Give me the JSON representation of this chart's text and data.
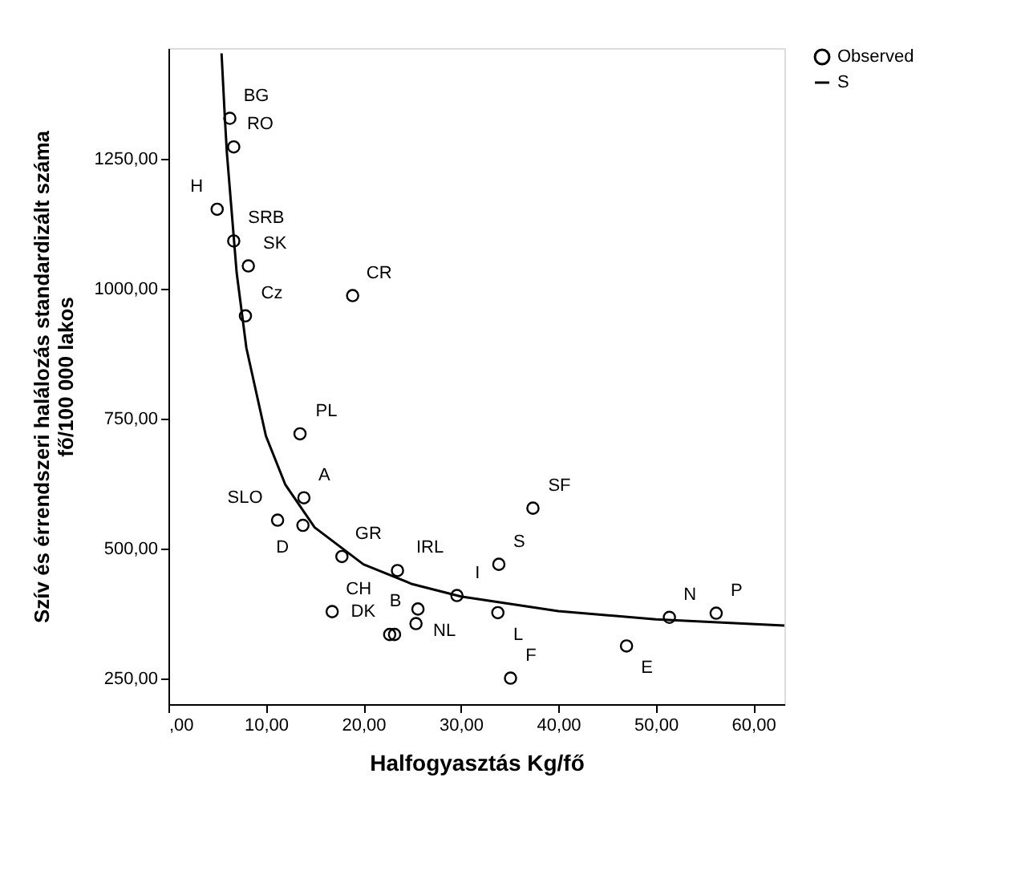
{
  "chart_data": {
    "type": "scatter",
    "xlabel": "Halfogyasztás Kg/fő",
    "ylabel": "Szív és érrendszeri halálozás standardizált száma\nfő/100 000 lakos",
    "xlim": [
      0,
      63.2
    ],
    "ylim": [
      201,
      1463
    ],
    "xticks": [
      {
        "value": 0,
        "label": ",00"
      },
      {
        "value": 10,
        "label": "10,00"
      },
      {
        "value": 20,
        "label": "20,00"
      },
      {
        "value": 30,
        "label": "30,00"
      },
      {
        "value": 40,
        "label": "40,00"
      },
      {
        "value": 50,
        "label": "50,00"
      },
      {
        "value": 60,
        "label": "60,00"
      }
    ],
    "yticks": [
      {
        "value": 250,
        "label": "250,00"
      },
      {
        "value": 500,
        "label": "500,00"
      },
      {
        "value": 750,
        "label": "750,00"
      },
      {
        "value": 1000,
        "label": "1000,00"
      },
      {
        "value": 1250,
        "label": "1250,00"
      }
    ],
    "legend": "top right",
    "grid": false,
    "series": [
      {
        "name": "Observed",
        "marker": "circle",
        "color": "#000000",
        "x": [
          6.3,
          6.7,
          5.0,
          6.7,
          8.2,
          7.9,
          18.9,
          13.5,
          13.9,
          11.2,
          13.8,
          17.8,
          16.8,
          23.5,
          25.6,
          25.4,
          22.7,
          23.2,
          29.6,
          33.9,
          33.8,
          35.1,
          37.4,
          47.0,
          51.4,
          56.2
        ],
        "values": [
          1328,
          1273,
          1153,
          1092,
          1044,
          948,
          987,
          721,
          598,
          555,
          545,
          485,
          379,
          458,
          384,
          356,
          335,
          335,
          410,
          470,
          377,
          251,
          578,
          313,
          368,
          376
        ]
      },
      {
        "name": "S",
        "type": "line",
        "marker": "none",
        "line_style": "solid",
        "color": "#000000",
        "x": [
          5.45,
          5.8,
          6,
          7,
          8,
          10,
          12,
          15,
          20,
          25,
          30,
          40,
          50,
          63.2
        ],
        "values": [
          1453,
          1325,
          1261,
          1031,
          886,
          717,
          623,
          541,
          470,
          432,
          408,
          380,
          364,
          352
        ]
      }
    ],
    "annotations": [
      {
        "text": "BG",
        "x": 6.3,
        "y": 1328
      },
      {
        "text": "RO",
        "x": 6.7,
        "y": 1273
      },
      {
        "text": "H",
        "x": 5.0,
        "y": 1153
      },
      {
        "text": "SRB",
        "x": 6.7,
        "y": 1092
      },
      {
        "text": "SK",
        "x": 8.2,
        "y": 1044
      },
      {
        "text": "Cz",
        "x": 7.9,
        "y": 948
      },
      {
        "text": "CR",
        "x": 18.9,
        "y": 987
      },
      {
        "text": "PL",
        "x": 13.5,
        "y": 721
      },
      {
        "text": "A",
        "x": 13.9,
        "y": 598
      },
      {
        "text": "SLO",
        "x": 11.2,
        "y": 555
      },
      {
        "text": "D",
        "x": 13.8,
        "y": 545
      },
      {
        "text": "GR",
        "x": 17.8,
        "y": 485
      },
      {
        "text": "CH",
        "x": 16.8,
        "y": 379
      },
      {
        "text": "IRL",
        "x": 23.5,
        "y": 458
      },
      {
        "text": "NL",
        "x": 25.6,
        "y": 384
      },
      {
        "text": "B",
        "x": 25.4,
        "y": 356
      },
      {
        "text": "DK",
        "x": 22.7,
        "y": 335
      },
      {
        "text": "I",
        "x": 29.6,
        "y": 410
      },
      {
        "text": "S",
        "x": 33.9,
        "y": 470
      },
      {
        "text": "L",
        "x": 33.8,
        "y": 377
      },
      {
        "text": "F",
        "x": 35.1,
        "y": 251
      },
      {
        "text": "SF",
        "x": 37.4,
        "y": 578
      },
      {
        "text": "E",
        "x": 47.0,
        "y": 313
      },
      {
        "text": "N",
        "x": 51.4,
        "y": 368
      },
      {
        "text": "P",
        "x": 56.2,
        "y": 376
      }
    ]
  }
}
